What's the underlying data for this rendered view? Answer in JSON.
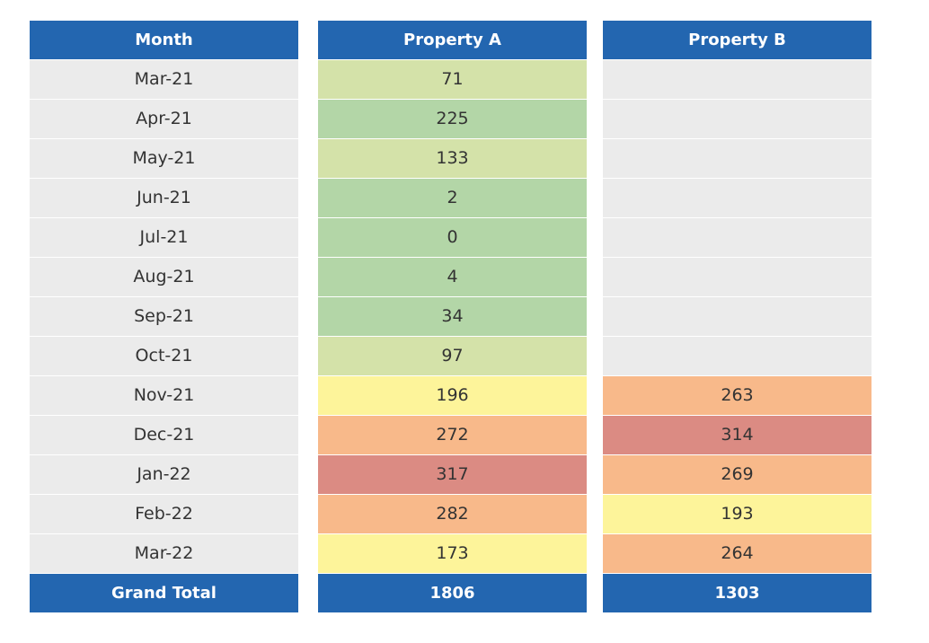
{
  "table": {
    "header": [
      "Month",
      "Property A",
      "Property B"
    ],
    "rows": [
      [
        "Mar-21",
        71,
        null
      ],
      [
        "Apr-21",
        225,
        null
      ],
      [
        "May-21",
        133,
        null
      ],
      [
        "Jun-21",
        2,
        null
      ],
      [
        "Jul-21",
        0,
        null
      ],
      [
        "Aug-21",
        4,
        null
      ],
      [
        "Sep-21",
        34,
        null
      ],
      [
        "Oct-21",
        97,
        null
      ],
      [
        "Nov-21",
        196,
        263
      ],
      [
        "Dec-21",
        272,
        314
      ],
      [
        "Jan-22",
        317,
        269
      ],
      [
        "Feb-22",
        282,
        193
      ],
      [
        "Mar-22",
        173,
        264
      ]
    ],
    "fills": [
      [
        "#ebebeb",
        "#d4e2a9",
        "#ebebeb"
      ],
      [
        "#ebebeb",
        "#b3d6a7",
        "#ebebeb"
      ],
      [
        "#ebebeb",
        "#d4e2a9",
        "#ebebeb"
      ],
      [
        "#ebebeb",
        "#b3d6a7",
        "#ebebeb"
      ],
      [
        "#ebebeb",
        "#b3d6a7",
        "#ebebeb"
      ],
      [
        "#ebebeb",
        "#b3d6a7",
        "#ebebeb"
      ],
      [
        "#ebebeb",
        "#b3d6a7",
        "#ebebeb"
      ],
      [
        "#ebebeb",
        "#d4e2a9",
        "#ebebeb"
      ],
      [
        "#ebebeb",
        "#fdf49a",
        "#f8b98a"
      ],
      [
        "#ebebeb",
        "#f8b98a",
        "#db8b83"
      ],
      [
        "#ebebeb",
        "#db8b83",
        "#f8b98a"
      ],
      [
        "#ebebeb",
        "#f8b98a",
        "#fdf49a"
      ],
      [
        "#ebebeb",
        "#fdf49a",
        "#f8b98a"
      ]
    ],
    "header_color": "#2366b0",
    "total": [
      "Grand Total",
      1806,
      1303
    ]
  }
}
